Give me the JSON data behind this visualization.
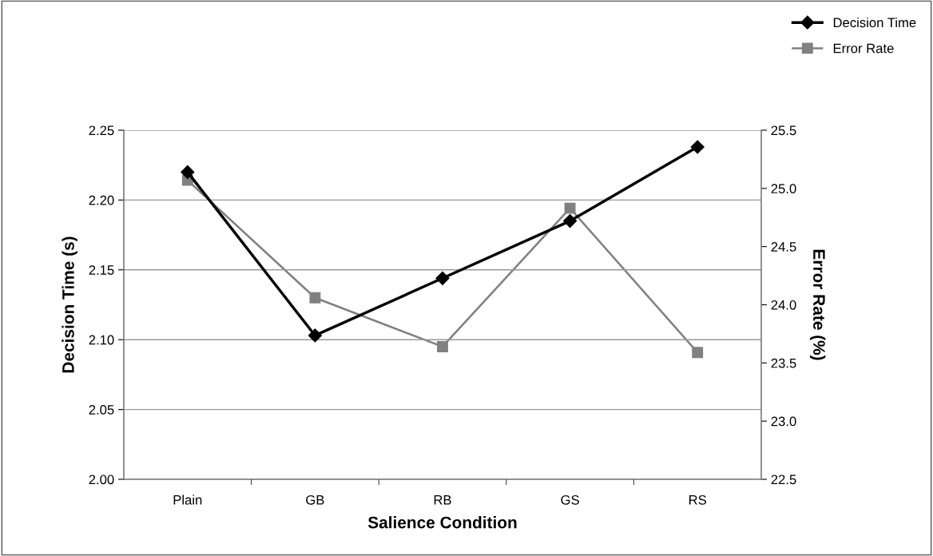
{
  "chart_data": {
    "type": "line",
    "xlabel": "Salience Condition",
    "ylabel": "Decision Time (s)",
    "y2label": "Error Rate (%)",
    "categories": [
      "Plain",
      "GB",
      "RB",
      "GS",
      "RS"
    ],
    "series": [
      {
        "name": "Decision Time",
        "color": "#000000",
        "values": [
          2.22,
          2.103,
          2.144,
          2.185,
          2.238
        ],
        "marker": "diamond"
      },
      {
        "name": "Error Rate",
        "color": "#808080",
        "values": [
          25.07,
          24.06,
          23.64,
          24.83,
          23.59
        ],
        "marker": "square",
        "axis": "y2"
      }
    ],
    "ylim": [
      2.0,
      2.25
    ],
    "yticks": [
      {
        "value": 2.0,
        "label": "2.00"
      },
      {
        "value": 2.05,
        "label": "2.05"
      },
      {
        "value": 2.1,
        "label": "2.10"
      },
      {
        "value": 2.15,
        "label": "2.15"
      },
      {
        "value": 2.2,
        "label": "2.20"
      },
      {
        "value": 2.25,
        "label": "2.25"
      }
    ],
    "y2lim": [
      22.5,
      25.5
    ],
    "y2ticks": [
      22.5,
      {
        "value": 23.0,
        "label": "23.0"
      },
      23.5,
      {
        "value": 24.0,
        "label": "24.0"
      },
      24.5,
      {
        "value": 25.0,
        "label": "25.0"
      },
      25.5
    ],
    "grid": "y",
    "legend": "top right",
    "line_style": "solid"
  }
}
